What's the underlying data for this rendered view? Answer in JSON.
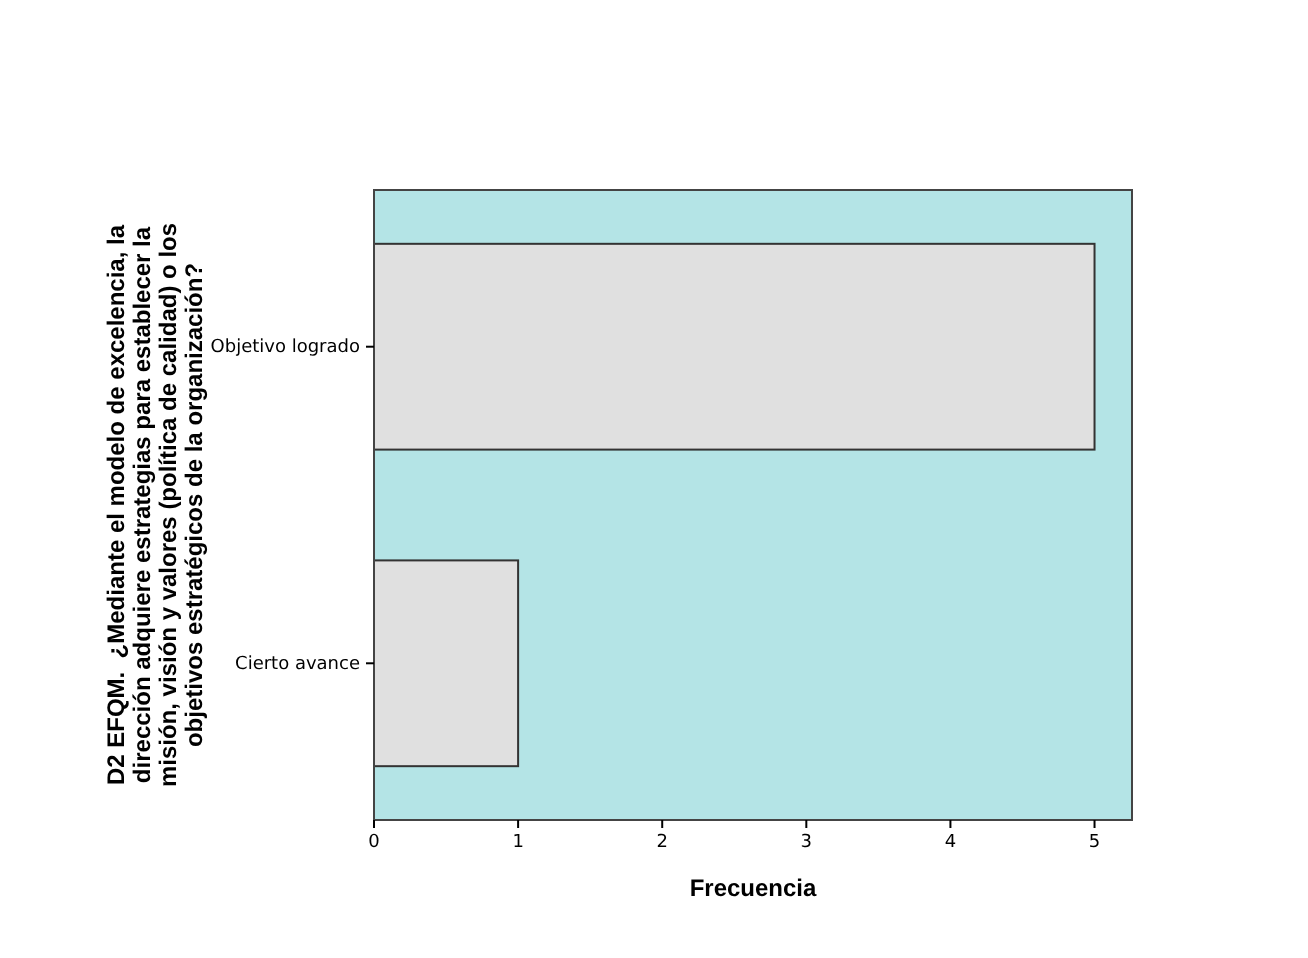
{
  "chart_data": {
    "type": "bar",
    "orientation": "horizontal",
    "xlabel": "Frecuencia",
    "ylabel": "D2 EFQM.  ¿Mediante el modelo de excelencia, la dirección adquiere estrategias para establecer la misión, visión y valores (política de calidad) o los objetivos estratégicos de la organización?",
    "categories": [
      "Objetivo logrado",
      "Cierto avance"
    ],
    "values": [
      5,
      1
    ],
    "color": "#e0e0e0",
    "xlim": [
      0,
      5.26
    ],
    "xticks": [
      0,
      1,
      2,
      3,
      4,
      5
    ],
    "grid": false
  }
}
